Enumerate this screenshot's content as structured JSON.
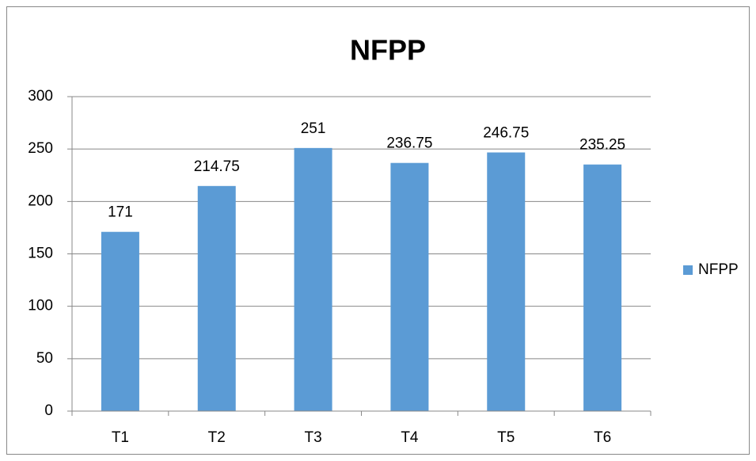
{
  "chart_data": {
    "type": "bar",
    "title": "NFPP",
    "categories": [
      "T1",
      "T2",
      "T3",
      "T4",
      "T5",
      "T6"
    ],
    "series": [
      {
        "name": "NFPP",
        "color": "#5b9bd5",
        "values": [
          171,
          214.75,
          251,
          236.75,
          246.75,
          235.25
        ]
      }
    ],
    "ylim": [
      0,
      300
    ],
    "yticks": [
      0,
      50,
      100,
      150,
      200,
      250,
      300
    ],
    "grid": true,
    "legend": "right",
    "data_labels": true
  }
}
